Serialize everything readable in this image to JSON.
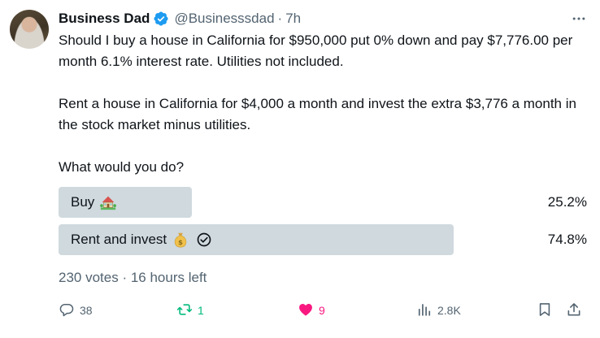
{
  "author": {
    "name": "Business Dad",
    "handle": "@Businesssdad",
    "separator": "·",
    "time": "7h",
    "verified": true
  },
  "tweet": {
    "paragraphs": [
      "Should I buy a house in California for $950,000 put 0% down and pay $7,776.00 per month 6.1% interest rate. Utilities not included.",
      "Rent a house in California for $4,000 a month and invest the extra $3,776 a month in the stock market minus utilities.",
      "What would you do?"
    ]
  },
  "poll": {
    "options": [
      {
        "label": "Buy",
        "emoji": "house-with-garden-icon",
        "percent": "25.2%",
        "fraction": 0.252,
        "selected": false
      },
      {
        "label": "Rent and invest",
        "emoji": "money-bag-icon",
        "percent": "74.8%",
        "fraction": 0.748,
        "selected": true
      }
    ],
    "footer": "230 votes · 16 hours left"
  },
  "actions": {
    "replies": "38",
    "retweets": "1",
    "likes": "9",
    "views": "2.8K"
  },
  "colors": {
    "text": "#0f1419",
    "secondary": "#536471",
    "poll_bar": "#cfd9de",
    "verified": "#1d9bf0",
    "retweet": "#00ba7c",
    "like": "#f91880"
  }
}
